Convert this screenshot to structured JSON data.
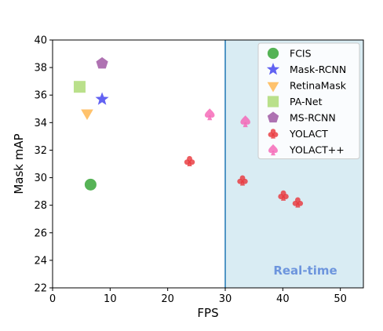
{
  "chart_data": {
    "type": "scatter",
    "xlabel": "FPS",
    "ylabel": "Mask mAP",
    "xlim": [
      0,
      54
    ],
    "ylim": [
      22,
      40
    ],
    "xticks": [
      "0",
      "10",
      "20",
      "30",
      "40",
      "50"
    ],
    "yticks": [
      "22",
      "24",
      "26",
      "28",
      "30",
      "32",
      "34",
      "36",
      "38",
      "40"
    ],
    "realtime_region": {
      "x_start": 30,
      "label": "Real-time",
      "color": "#d9ecf3",
      "line_color": "#1f77b4"
    },
    "legend_placement": "top-right",
    "series": [
      {
        "name": "FCIS",
        "marker": "circle",
        "color": "#2ca02c",
        "points": [
          {
            "x": 6.6,
            "y": 29.5
          }
        ]
      },
      {
        "name": "Mask-RCNN",
        "marker": "star",
        "color": "#3b3bef",
        "points": [
          {
            "x": 8.6,
            "y": 35.7
          }
        ]
      },
      {
        "name": "RetinaMask",
        "marker": "triangle-down",
        "color": "#ffb347",
        "points": [
          {
            "x": 6.0,
            "y": 34.7
          }
        ]
      },
      {
        "name": "PA-Net",
        "marker": "square",
        "color": "#a9d86e",
        "points": [
          {
            "x": 4.7,
            "y": 36.6
          }
        ]
      },
      {
        "name": "MS-RCNN",
        "marker": "pentagon",
        "color": "#9b4f9f",
        "points": [
          {
            "x": 8.6,
            "y": 38.3
          }
        ]
      },
      {
        "name": "YOLACT",
        "marker": "club",
        "color": "#e8343a",
        "points": [
          {
            "x": 23.8,
            "y": 31.2
          },
          {
            "x": 33.0,
            "y": 29.8
          },
          {
            "x": 40.1,
            "y": 28.7
          },
          {
            "x": 42.6,
            "y": 28.2
          }
        ]
      },
      {
        "name": "YOLACT++",
        "marker": "spade",
        "color": "#f561b4",
        "points": [
          {
            "x": 27.3,
            "y": 34.6
          },
          {
            "x": 33.5,
            "y": 34.1
          }
        ]
      }
    ]
  }
}
